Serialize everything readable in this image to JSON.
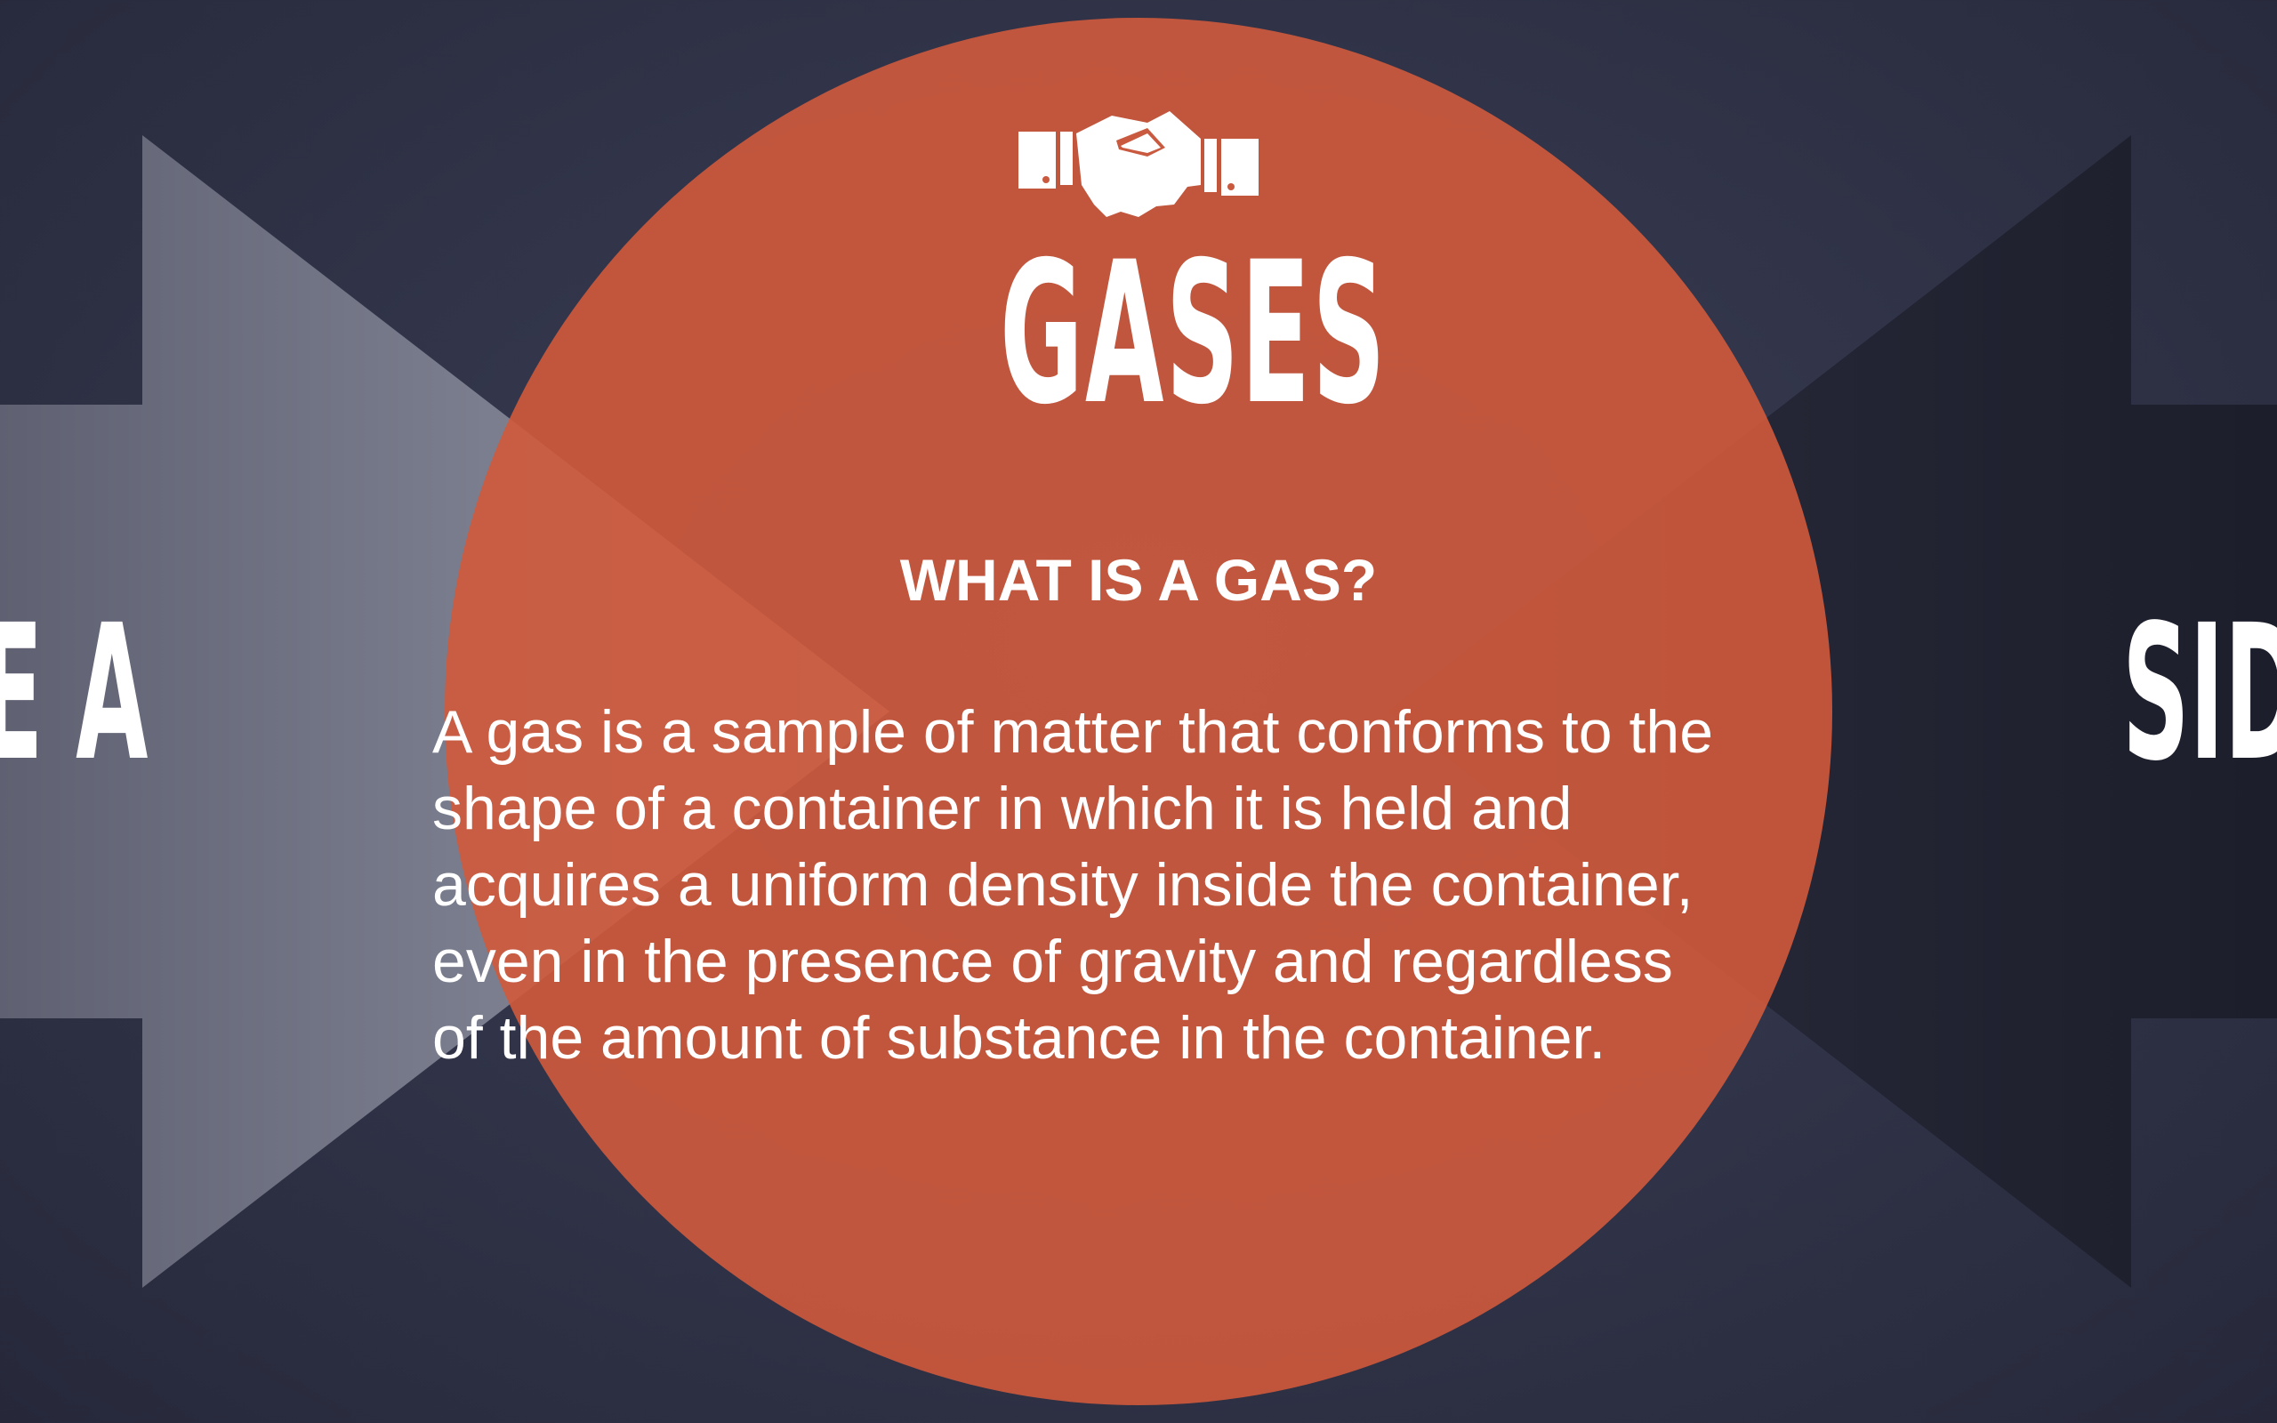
{
  "slide": {
    "title": "GASES",
    "icon": "handshake-icon",
    "heading": "WHAT IS A GAS?",
    "body_lines": [
      "A gas is a sample of matter that conforms to the",
      "shape of a container in which it is held and",
      "acquires a uniform density inside the container,",
      "even in the presence of gravity and regardless",
      "of the amount of substance in the container."
    ],
    "left_label": "DE A",
    "right_label": "SIDI"
  },
  "colors": {
    "background": "#33364b",
    "circle": "#c95a3f",
    "left_arrow": "#8a8d9c",
    "right_arrow": "#1f2130",
    "text": "#ffffff"
  }
}
